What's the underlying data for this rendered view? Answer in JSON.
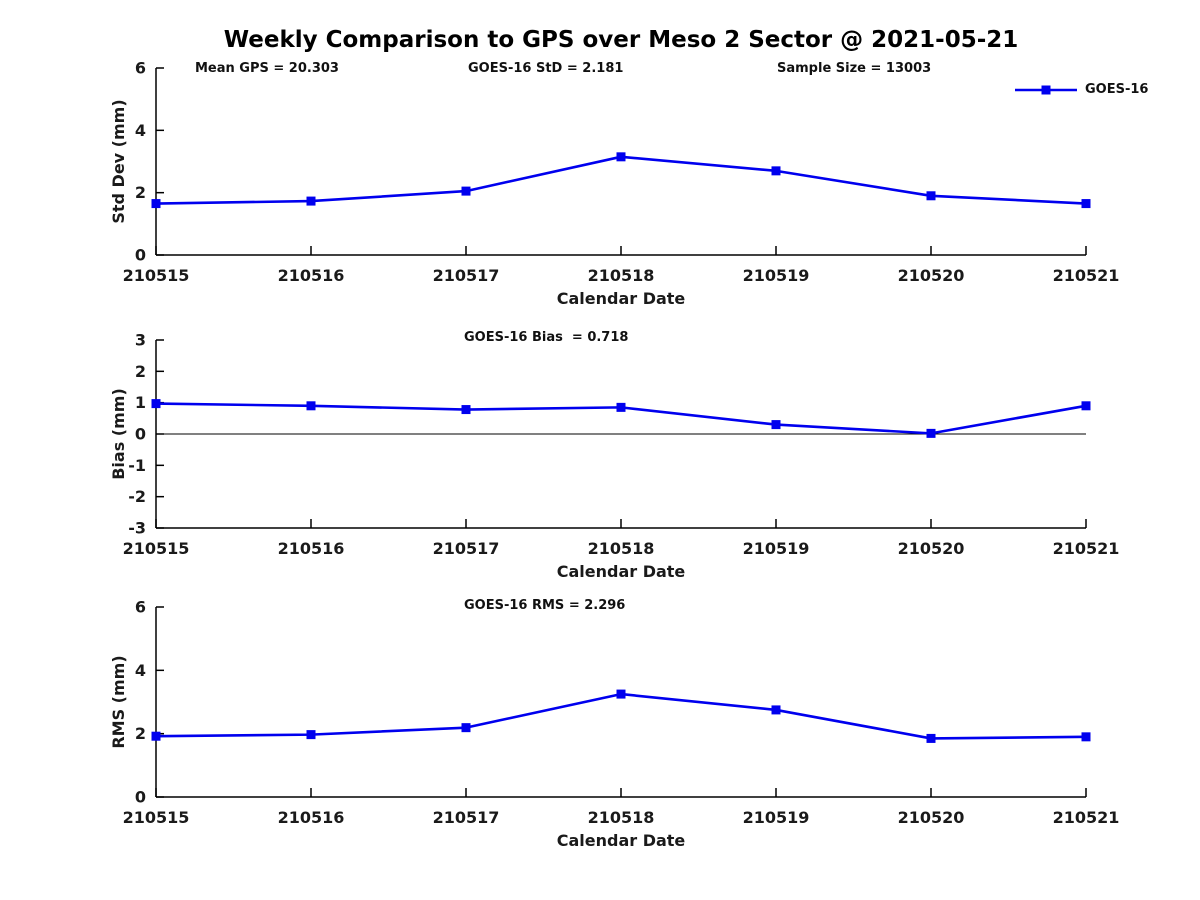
{
  "figure": {
    "title": "Weekly Comparison to GPS over Meso 2 Sector @ 2021-05-21",
    "legend": {
      "label": "GOES-16",
      "marker": "square",
      "color": "#0000EE"
    },
    "accent_color": "#0000EE",
    "text_color": "#1a1a1a",
    "background_color": "#ffffff"
  },
  "chart_data": [
    {
      "type": "line",
      "panel": "std-dev",
      "title_annotations": [
        "Mean GPS = 20.303",
        "GOES-16 StD = 2.181",
        "Sample Size = 13003"
      ],
      "categories": [
        "210515",
        "210516",
        "210517",
        "210518",
        "210519",
        "210520",
        "210521"
      ],
      "series": [
        {
          "name": "GOES-16",
          "color": "#0000EE",
          "marker": "square",
          "values": [
            1.65,
            1.73,
            2.05,
            3.15,
            2.7,
            1.9,
            1.65
          ]
        }
      ],
      "xlabel": "Calendar Date",
      "ylabel": "Std Dev (mm)",
      "ylim": [
        0,
        6
      ],
      "yticks": [
        0,
        2,
        4,
        6
      ],
      "grid": false,
      "zero_line": false,
      "legend_position": "top-right-outside"
    },
    {
      "type": "line",
      "panel": "bias",
      "title_annotations": [
        "GOES-16 Bias  = 0.718"
      ],
      "categories": [
        "210515",
        "210516",
        "210517",
        "210518",
        "210519",
        "210520",
        "210521"
      ],
      "series": [
        {
          "name": "GOES-16",
          "color": "#0000EE",
          "marker": "square",
          "values": [
            0.97,
            0.9,
            0.78,
            0.85,
            0.3,
            0.02,
            0.9
          ]
        }
      ],
      "xlabel": "Calendar Date",
      "ylabel": "Bias (mm)",
      "ylim": [
        -3,
        3
      ],
      "yticks": [
        -3,
        -2,
        -1,
        0,
        1,
        2,
        3
      ],
      "grid": false,
      "zero_line": true
    },
    {
      "type": "line",
      "panel": "rms",
      "title_annotations": [
        "GOES-16 RMS = 2.296"
      ],
      "categories": [
        "210515",
        "210516",
        "210517",
        "210518",
        "210519",
        "210520",
        "210521"
      ],
      "series": [
        {
          "name": "GOES-16",
          "color": "#0000EE",
          "marker": "square",
          "values": [
            1.92,
            1.97,
            2.19,
            3.25,
            2.75,
            1.85,
            1.9
          ]
        }
      ],
      "xlabel": "Calendar Date",
      "ylabel": "RMS (mm)",
      "ylim": [
        0,
        6
      ],
      "yticks": [
        0,
        2,
        4,
        6
      ],
      "grid": false,
      "zero_line": false
    }
  ]
}
